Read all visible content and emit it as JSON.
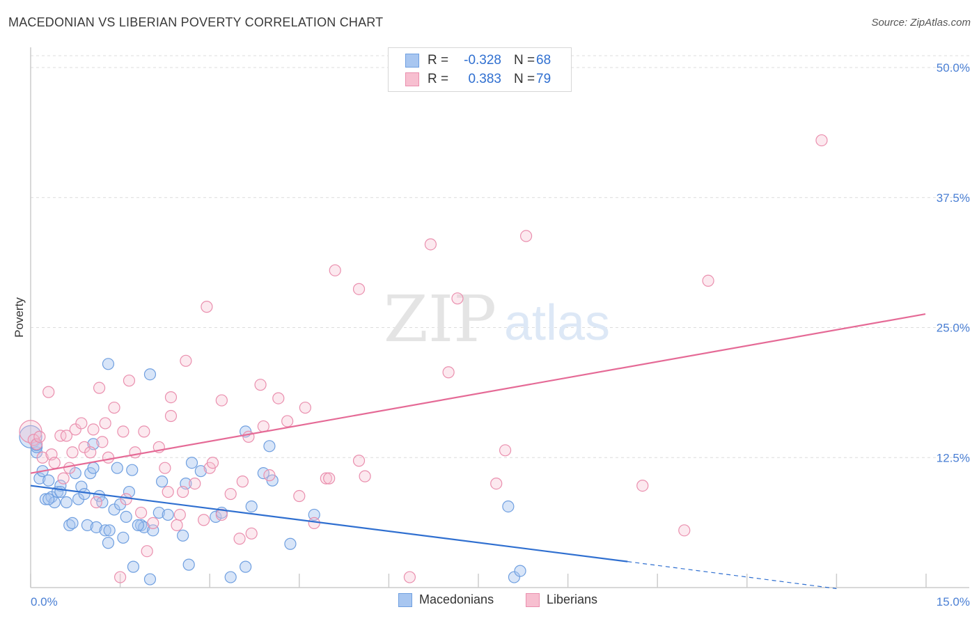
{
  "title": "MACEDONIAN VS LIBERIAN POVERTY CORRELATION CHART",
  "source": "Source: ZipAtlas.com",
  "watermark": {
    "zip": "ZIP",
    "atlas": "atlas"
  },
  "legend": {
    "rows": [
      {
        "r_label": "R =",
        "r_value": "-0.328",
        "n_label": "N =",
        "n_value": "68",
        "color": "#a8c6f0",
        "stroke": "#6f9fe0"
      },
      {
        "r_label": "R =",
        "r_value": "0.383",
        "n_label": "N =",
        "n_value": "79",
        "color": "#f7bfd0",
        "stroke": "#ea8fae"
      }
    ]
  },
  "bottom_legend": [
    {
      "label": "Macedonians",
      "color": "#a8c6f0",
      "stroke": "#6f9fe0"
    },
    {
      "label": "Liberians",
      "color": "#f7bfd0",
      "stroke": "#ea8fae"
    }
  ],
  "chart_data": {
    "type": "scatter",
    "ylabel": "Poverty",
    "xlim": [
      0,
      15
    ],
    "ylim": [
      0,
      50
    ],
    "x_tick_labels": [
      "0.0%",
      "15.0%"
    ],
    "y_ticks": [
      12.5,
      25.0,
      37.5,
      50.0
    ],
    "y_tick_labels": [
      "12.5%",
      "25.0%",
      "37.5%",
      "50.0%"
    ],
    "grid": "horizontal dashed",
    "series": [
      {
        "name": "Macedonians",
        "color": "#6f9fe0",
        "trend": {
          "x0": 0,
          "y0": 9.8,
          "x1": 10.0,
          "y1": 2.5,
          "dash_to_x": 13.5,
          "dash_to_y": -0.1,
          "color": "#2f6fd0"
        },
        "points": [
          [
            0.0,
            14.5
          ],
          [
            0.1,
            13.0
          ],
          [
            0.1,
            13.5
          ],
          [
            0.15,
            10.5
          ],
          [
            0.2,
            11.2
          ],
          [
            0.25,
            8.5
          ],
          [
            0.3,
            10.3
          ],
          [
            0.35,
            8.7
          ],
          [
            0.4,
            8.2
          ],
          [
            0.45,
            9.2
          ],
          [
            0.5,
            9.8
          ],
          [
            0.6,
            8.2
          ],
          [
            0.65,
            6.0
          ],
          [
            0.7,
            6.2
          ],
          [
            0.75,
            11.0
          ],
          [
            0.8,
            8.5
          ],
          [
            0.85,
            9.7
          ],
          [
            0.9,
            9.0
          ],
          [
            0.95,
            6.0
          ],
          [
            1.0,
            11.0
          ],
          [
            1.05,
            11.5
          ],
          [
            1.05,
            13.8
          ],
          [
            1.1,
            5.8
          ],
          [
            1.15,
            8.8
          ],
          [
            1.2,
            8.2
          ],
          [
            1.25,
            5.5
          ],
          [
            1.3,
            4.3
          ],
          [
            1.32,
            5.5
          ],
          [
            1.4,
            7.5
          ],
          [
            1.45,
            11.5
          ],
          [
            1.5,
            8.0
          ],
          [
            1.55,
            4.8
          ],
          [
            1.6,
            6.8
          ],
          [
            1.65,
            9.2
          ],
          [
            1.7,
            11.3
          ],
          [
            1.72,
            2.0
          ],
          [
            1.85,
            6.0
          ],
          [
            1.9,
            5.8
          ],
          [
            2.0,
            0.8
          ],
          [
            2.05,
            5.5
          ],
          [
            2.15,
            7.2
          ],
          [
            2.2,
            10.2
          ],
          [
            2.55,
            5.0
          ],
          [
            2.6,
            10.0
          ],
          [
            2.65,
            2.2
          ],
          [
            2.7,
            12.0
          ],
          [
            2.85,
            11.2
          ],
          [
            3.1,
            6.8
          ],
          [
            3.2,
            7.2
          ],
          [
            3.35,
            1.0
          ],
          [
            3.6,
            2.0
          ],
          [
            3.7,
            7.8
          ],
          [
            3.9,
            11.0
          ],
          [
            4.05,
            10.3
          ],
          [
            4.35,
            4.2
          ],
          [
            4.75,
            7.0
          ],
          [
            1.3,
            21.5
          ],
          [
            2.0,
            20.5
          ],
          [
            3.6,
            15.0
          ],
          [
            4.0,
            13.6
          ],
          [
            8.0,
            7.8
          ],
          [
            8.1,
            1.0
          ],
          [
            8.2,
            1.6
          ],
          [
            0.1,
            13.7
          ],
          [
            0.5,
            9.2
          ],
          [
            0.3,
            8.5
          ],
          [
            1.8,
            6.0
          ],
          [
            2.3,
            7.0
          ]
        ]
      },
      {
        "name": "Liberians",
        "color": "#ea8fae",
        "trend": {
          "x0": 0,
          "y0": 11.0,
          "x1": 15.0,
          "y1": 26.3,
          "color": "#e56a96"
        },
        "points": [
          [
            0.0,
            15.0
          ],
          [
            0.05,
            14.2
          ],
          [
            0.1,
            13.8
          ],
          [
            0.15,
            14.5
          ],
          [
            0.2,
            12.5
          ],
          [
            0.3,
            18.8
          ],
          [
            0.35,
            12.8
          ],
          [
            0.4,
            12.0
          ],
          [
            0.5,
            14.6
          ],
          [
            0.55,
            10.5
          ],
          [
            0.6,
            14.6
          ],
          [
            0.65,
            11.5
          ],
          [
            0.7,
            13.0
          ],
          [
            0.75,
            15.2
          ],
          [
            0.85,
            15.8
          ],
          [
            0.9,
            13.5
          ],
          [
            1.0,
            13.0
          ],
          [
            1.05,
            15.2
          ],
          [
            1.1,
            8.2
          ],
          [
            1.15,
            19.2
          ],
          [
            1.2,
            14.0
          ],
          [
            1.25,
            15.8
          ],
          [
            1.3,
            12.5
          ],
          [
            1.4,
            17.3
          ],
          [
            1.5,
            1.0
          ],
          [
            1.55,
            15.0
          ],
          [
            1.6,
            8.5
          ],
          [
            1.65,
            19.9
          ],
          [
            1.75,
            13.0
          ],
          [
            1.85,
            7.2
          ],
          [
            1.9,
            15.0
          ],
          [
            1.95,
            3.5
          ],
          [
            2.05,
            6.2
          ],
          [
            2.15,
            13.5
          ],
          [
            2.25,
            11.5
          ],
          [
            2.3,
            9.2
          ],
          [
            2.35,
            18.3
          ],
          [
            2.45,
            6.0
          ],
          [
            2.5,
            7.0
          ],
          [
            2.55,
            9.2
          ],
          [
            2.6,
            21.8
          ],
          [
            2.75,
            10.0
          ],
          [
            2.9,
            6.5
          ],
          [
            2.95,
            27.0
          ],
          [
            3.0,
            11.5
          ],
          [
            3.05,
            12.0
          ],
          [
            3.2,
            7.0
          ],
          [
            3.2,
            18.0
          ],
          [
            3.35,
            9.0
          ],
          [
            3.5,
            4.7
          ],
          [
            3.55,
            10.2
          ],
          [
            3.7,
            5.2
          ],
          [
            3.85,
            19.5
          ],
          [
            3.9,
            15.5
          ],
          [
            4.0,
            10.8
          ],
          [
            4.15,
            18.2
          ],
          [
            4.3,
            16.0
          ],
          [
            4.5,
            8.8
          ],
          [
            4.6,
            17.3
          ],
          [
            4.75,
            6.2
          ],
          [
            4.95,
            10.5
          ],
          [
            5.0,
            10.5
          ],
          [
            5.1,
            30.5
          ],
          [
            5.5,
            12.2
          ],
          [
            5.5,
            28.7
          ],
          [
            5.6,
            10.7
          ],
          [
            6.35,
            1.0
          ],
          [
            6.7,
            33.0
          ],
          [
            7.0,
            20.7
          ],
          [
            7.15,
            27.8
          ],
          [
            7.8,
            10.0
          ],
          [
            7.95,
            13.2
          ],
          [
            8.3,
            33.8
          ],
          [
            10.25,
            9.8
          ],
          [
            10.95,
            5.5
          ],
          [
            11.35,
            29.5
          ],
          [
            13.25,
            43.0
          ],
          [
            3.65,
            14.5
          ],
          [
            2.35,
            16.5
          ]
        ]
      }
    ]
  }
}
